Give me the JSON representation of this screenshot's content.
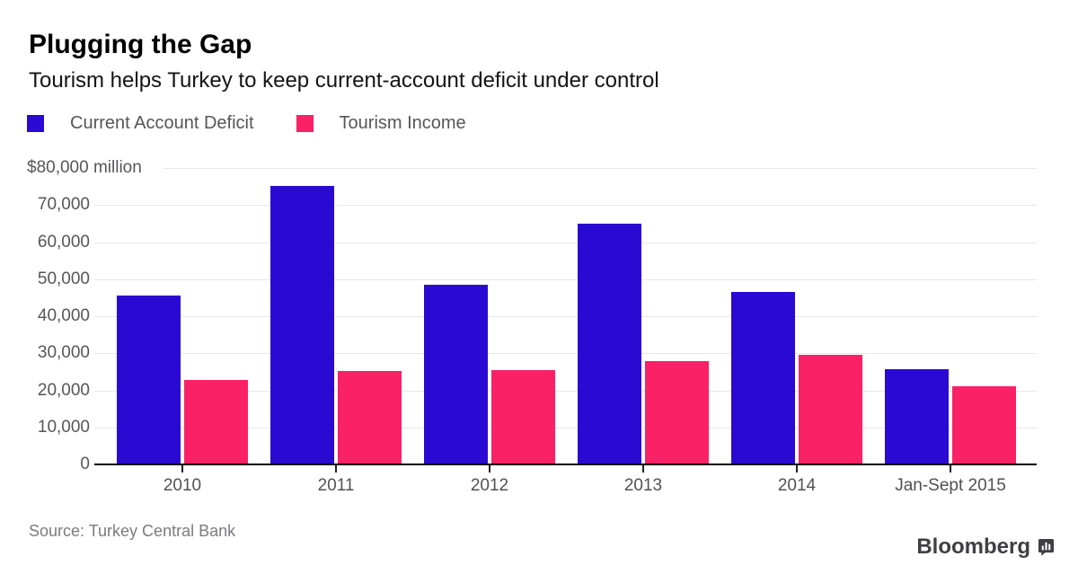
{
  "header": {
    "title": "Plugging the Gap",
    "subtitle": "Tourism helps Turkey to keep current-account deficit under control"
  },
  "legend": [
    {
      "label": "Current Account Deficit",
      "color": "#2a0ad2"
    },
    {
      "label": "Tourism Income",
      "color": "#fa2166"
    }
  ],
  "chart_data": {
    "type": "bar",
    "title": "Plugging the Gap",
    "subtitle": "Tourism helps Turkey to keep current-account deficit under control",
    "unit_label": "$80,000 million",
    "categories": [
      "2010",
      "2011",
      "2012",
      "2013",
      "2014",
      "Jan-Sept 2015"
    ],
    "series": [
      {
        "name": "Current Account Deficit",
        "color": "#2a0ad2",
        "values": [
          45500,
          75100,
          48500,
          65000,
          46500,
          25700
        ]
      },
      {
        "name": "Tourism Income",
        "color": "#fa2166",
        "values": [
          22700,
          25100,
          25400,
          28000,
          29600,
          21100
        ]
      }
    ],
    "ylim": [
      0,
      80000
    ],
    "y_ticks": [
      0,
      10000,
      20000,
      30000,
      40000,
      50000,
      60000,
      70000
    ],
    "y_tick_labels": [
      "0",
      "10,000",
      "20,000",
      "30,000",
      "40,000",
      "50,000",
      "60,000",
      "70,000"
    ],
    "grid": true,
    "legend_position": "top"
  },
  "footer": {
    "source": "Source: Turkey Central Bank",
    "brand": "Bloomberg"
  },
  "colors": {
    "series_blue": "#2a0ad2",
    "series_pink": "#fa2166",
    "gridline": "#e7e7ea",
    "axis_text": "#56565a",
    "baseline": "#000000",
    "source_text": "#7b7b80",
    "brand_text": "#3f3f44"
  }
}
